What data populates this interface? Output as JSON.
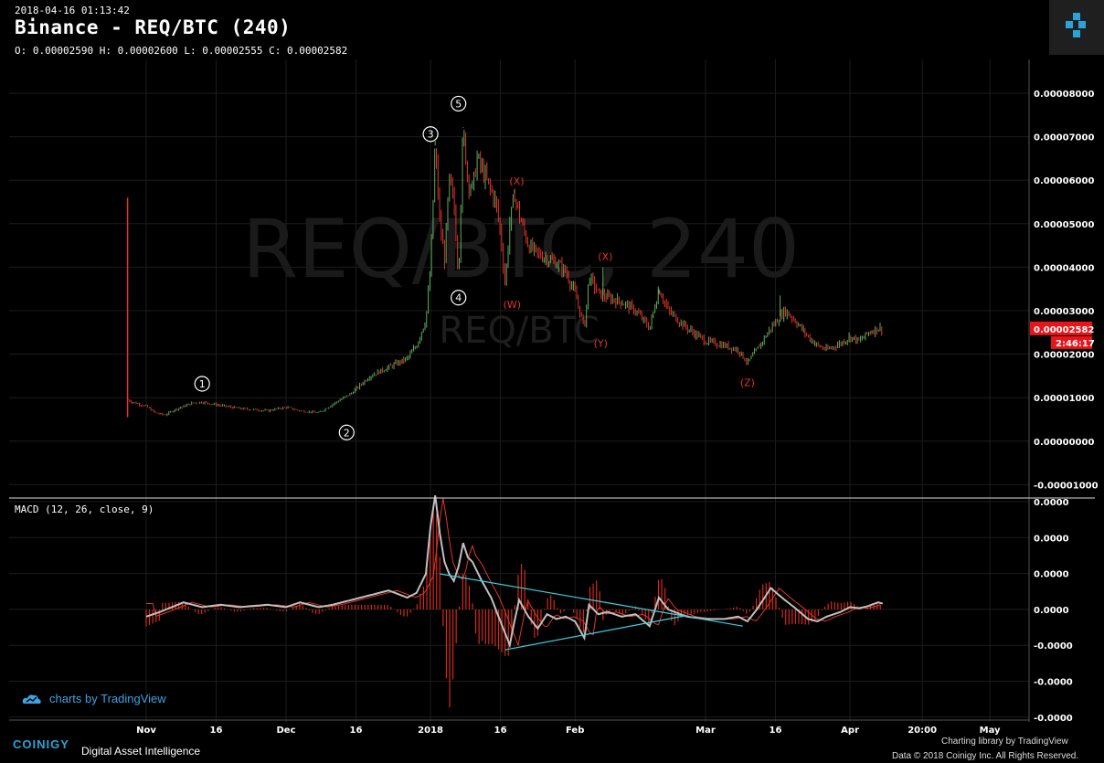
{
  "header": {
    "timestamp": "2018-04-16 01:13:42",
    "title": "Binance - REQ/BTC (240)",
    "ohlc": "O: 0.00002590 H: 0.00002600 L: 0.00002555 C: 0.00002582"
  },
  "watermark": {
    "big": "REQ/BTC, 240",
    "small": "REQ/BTC"
  },
  "chart_data": [
    {
      "type": "candlestick",
      "title": "Binance - REQ/BTC (240)",
      "ylim": [
        -1.2e-05,
        8.8e-05
      ],
      "y_ticks": [
        "0.00008000",
        "0.00007000",
        "0.00006000",
        "0.00005000",
        "0.00004000",
        "0.00003000",
        "0.00002000",
        "0.00001000",
        "0.00000000",
        "-0.00001000"
      ],
      "x_ticks": [
        "Nov",
        "16",
        "Dec",
        "16",
        "2018",
        "16",
        "Feb",
        "Mar",
        "16",
        "Apr",
        "20:00",
        "May"
      ],
      "last_price": "0.00002582",
      "countdown": "2:46:17",
      "series": [
        {
          "values_by_day": [
            [
              -4,
              5.6e-05
            ],
            [
              -3.9,
              9.5e-06
            ],
            [
              -3,
              9e-06
            ],
            [
              0,
              8e-06
            ],
            [
              2,
              6.5e-06
            ],
            [
              4,
              6e-06
            ],
            [
              6,
              7.2e-06
            ],
            [
              10,
              8.8e-06
            ],
            [
              12,
              9e-06
            ],
            [
              16,
              8.2e-06
            ],
            [
              20,
              7.5e-06
            ],
            [
              26,
              7e-06
            ],
            [
              30,
              7.8e-06
            ],
            [
              33,
              7e-06
            ],
            [
              37,
              6.5e-06
            ],
            [
              40,
              8.5e-06
            ],
            [
              44,
              1.1e-05
            ],
            [
              48,
              1.5e-05
            ],
            [
              52,
              1.7e-05
            ],
            [
              56,
              1.9e-05
            ],
            [
              58,
              2.2e-05
            ],
            [
              60,
              2.8e-05
            ],
            [
              61,
              4e-05
            ],
            [
              62,
              6.8e-05
            ],
            [
              63,
              5e-05
            ],
            [
              64,
              4.2e-05
            ],
            [
              65,
              6e-05
            ],
            [
              66,
              5.5e-05
            ],
            [
              67,
              3.8e-05
            ],
            [
              68,
              7.2e-05
            ],
            [
              69,
              6e-05
            ],
            [
              70,
              5.8e-05
            ],
            [
              71,
              6.5e-05
            ],
            [
              73,
              6e-05
            ],
            [
              75,
              5.5e-05
            ],
            [
              76,
              4.8e-05
            ],
            [
              77,
              3.6e-05
            ],
            [
              78,
              5e-05
            ],
            [
              79,
              5.7e-05
            ],
            [
              80,
              5.2e-05
            ],
            [
              82,
              4.5e-05
            ],
            [
              84,
              4.3e-05
            ],
            [
              86,
              4.2e-05
            ],
            [
              88,
              4.1e-05
            ],
            [
              90,
              3.9e-05
            ],
            [
              92,
              3.4e-05
            ],
            [
              94,
              2.6e-05
            ],
            [
              95,
              3.8e-05
            ],
            [
              97,
              3.4e-05
            ],
            [
              99,
              3.3e-05
            ],
            [
              102,
              3.2e-05
            ],
            [
              105,
              3e-05
            ],
            [
              108,
              2.6e-05
            ],
            [
              110,
              3.5e-05
            ],
            [
              112,
              3e-05
            ],
            [
              116,
              2.6e-05
            ],
            [
              120,
              2.3e-05
            ],
            [
              124,
              2.2e-05
            ],
            [
              127,
              2.1e-05
            ],
            [
              129,
              1.8e-05
            ],
            [
              131,
              2.1e-05
            ],
            [
              134,
              2.6e-05
            ],
            [
              137,
              3e-05
            ],
            [
              139,
              2.8e-05
            ],
            [
              142,
              2.4e-05
            ],
            [
              144,
              2.2e-05
            ],
            [
              146,
              2.1e-05
            ],
            [
              149,
              2.25e-05
            ],
            [
              151,
              2.4e-05
            ],
            [
              153,
              2.3e-05
            ],
            [
              155,
              2.5e-05
            ],
            [
              157,
              2.6e-05
            ],
            [
              158,
              2.58e-05
            ]
          ]
        }
      ],
      "annotations": [
        {
          "label": "1",
          "style": "circle",
          "day": 12,
          "value": 1.32e-05
        },
        {
          "label": "2",
          "style": "circle",
          "day": 43,
          "value": 2e-06
        },
        {
          "label": "3",
          "style": "circle",
          "day": 61,
          "value": 7.06e-05
        },
        {
          "label": "5",
          "style": "circle",
          "day": 67,
          "value": 7.76e-05
        },
        {
          "label": "4",
          "style": "circle",
          "day": 67,
          "value": 3.3e-05
        },
        {
          "label": "(X)",
          "style": "red",
          "day": 79.5,
          "value": 5.98e-05
        },
        {
          "label": "(W)",
          "style": "red",
          "day": 78.5,
          "value": 3.15e-05
        },
        {
          "label": "(X)",
          "style": "red",
          "day": 98.5,
          "value": 4.25e-05
        },
        {
          "label": "(Y)",
          "style": "red",
          "day": 97.5,
          "value": 2.25e-05
        },
        {
          "label": "(Z)",
          "style": "red",
          "day": 129,
          "value": 1.35e-05
        }
      ]
    },
    {
      "type": "line",
      "title": "MACD (12, 26, close, 9)",
      "y_ticks": [
        "0.0000",
        "0.0000",
        "0.0000",
        "0.0000",
        "-0.0000",
        "-0.0000",
        "-0.0000"
      ],
      "histogram_color": "#d42a1a",
      "macd_color": "#c0c0c0",
      "signal_color": "#e0352a",
      "trendline_color": "#3ad0e0",
      "macd": [
        [
          0,
          -0.3
        ],
        [
          3,
          -0.1
        ],
        [
          8,
          0.3
        ],
        [
          12,
          0.1
        ],
        [
          16,
          0.2
        ],
        [
          20,
          0.1
        ],
        [
          26,
          0.2
        ],
        [
          30,
          0.1
        ],
        [
          33,
          0.3
        ],
        [
          37,
          0.1
        ],
        [
          40,
          0.2
        ],
        [
          44,
          0.4
        ],
        [
          48,
          0.6
        ],
        [
          52,
          0.8
        ],
        [
          56,
          0.5
        ],
        [
          58,
          0.7
        ],
        [
          60,
          1.5
        ],
        [
          61,
          3.5
        ],
        [
          62,
          4.8
        ],
        [
          63,
          3.2
        ],
        [
          64,
          2.0
        ],
        [
          65,
          1.5
        ],
        [
          66,
          1.2
        ],
        [
          67,
          1.8
        ],
        [
          68,
          2.8
        ],
        [
          69,
          2.2
        ],
        [
          70,
          2.0
        ],
        [
          72,
          1.2
        ],
        [
          74,
          0.5
        ],
        [
          76,
          -0.5
        ],
        [
          78,
          -1.5
        ],
        [
          79,
          -0.5
        ],
        [
          80,
          0.4
        ],
        [
          82,
          -0.3
        ],
        [
          84,
          -0.8
        ],
        [
          86,
          -0.2
        ],
        [
          88,
          -0.4
        ],
        [
          90,
          -0.3
        ],
        [
          92,
          -0.5
        ],
        [
          94,
          -1.2
        ],
        [
          95,
          0.2
        ],
        [
          97,
          -0.2
        ],
        [
          99,
          -0.1
        ],
        [
          102,
          -0.3
        ],
        [
          105,
          -0.2
        ],
        [
          108,
          -0.7
        ],
        [
          110,
          0.5
        ],
        [
          112,
          0.0
        ],
        [
          116,
          -0.3
        ],
        [
          120,
          -0.4
        ],
        [
          124,
          -0.4
        ],
        [
          127,
          -0.3
        ],
        [
          129,
          -0.5
        ],
        [
          131,
          0.0
        ],
        [
          134,
          0.9
        ],
        [
          137,
          0.4
        ],
        [
          139,
          0.1
        ],
        [
          142,
          -0.4
        ],
        [
          144,
          -0.5
        ],
        [
          146,
          -0.3
        ],
        [
          149,
          -0.1
        ],
        [
          151,
          0.1
        ],
        [
          153,
          0.05
        ],
        [
          155,
          0.15
        ],
        [
          157,
          0.3
        ],
        [
          158,
          0.25
        ]
      ],
      "trendlines": [
        [
          [
            63,
            1.5
          ],
          [
            128,
            -0.7
          ]
        ],
        [
          [
            77,
            -1.7
          ],
          [
            116,
            -0.25
          ]
        ]
      ]
    }
  ],
  "branding": {
    "tradingview_credit": "charts by TradingView",
    "coinigy_name": "COINIGY",
    "coinigy_tagline": "Digital Asset Intelligence",
    "charting_library": "Charting library by  TradingView",
    "copyright": "Data © 2018 Coinigy Inc. All Rights Reserved."
  }
}
